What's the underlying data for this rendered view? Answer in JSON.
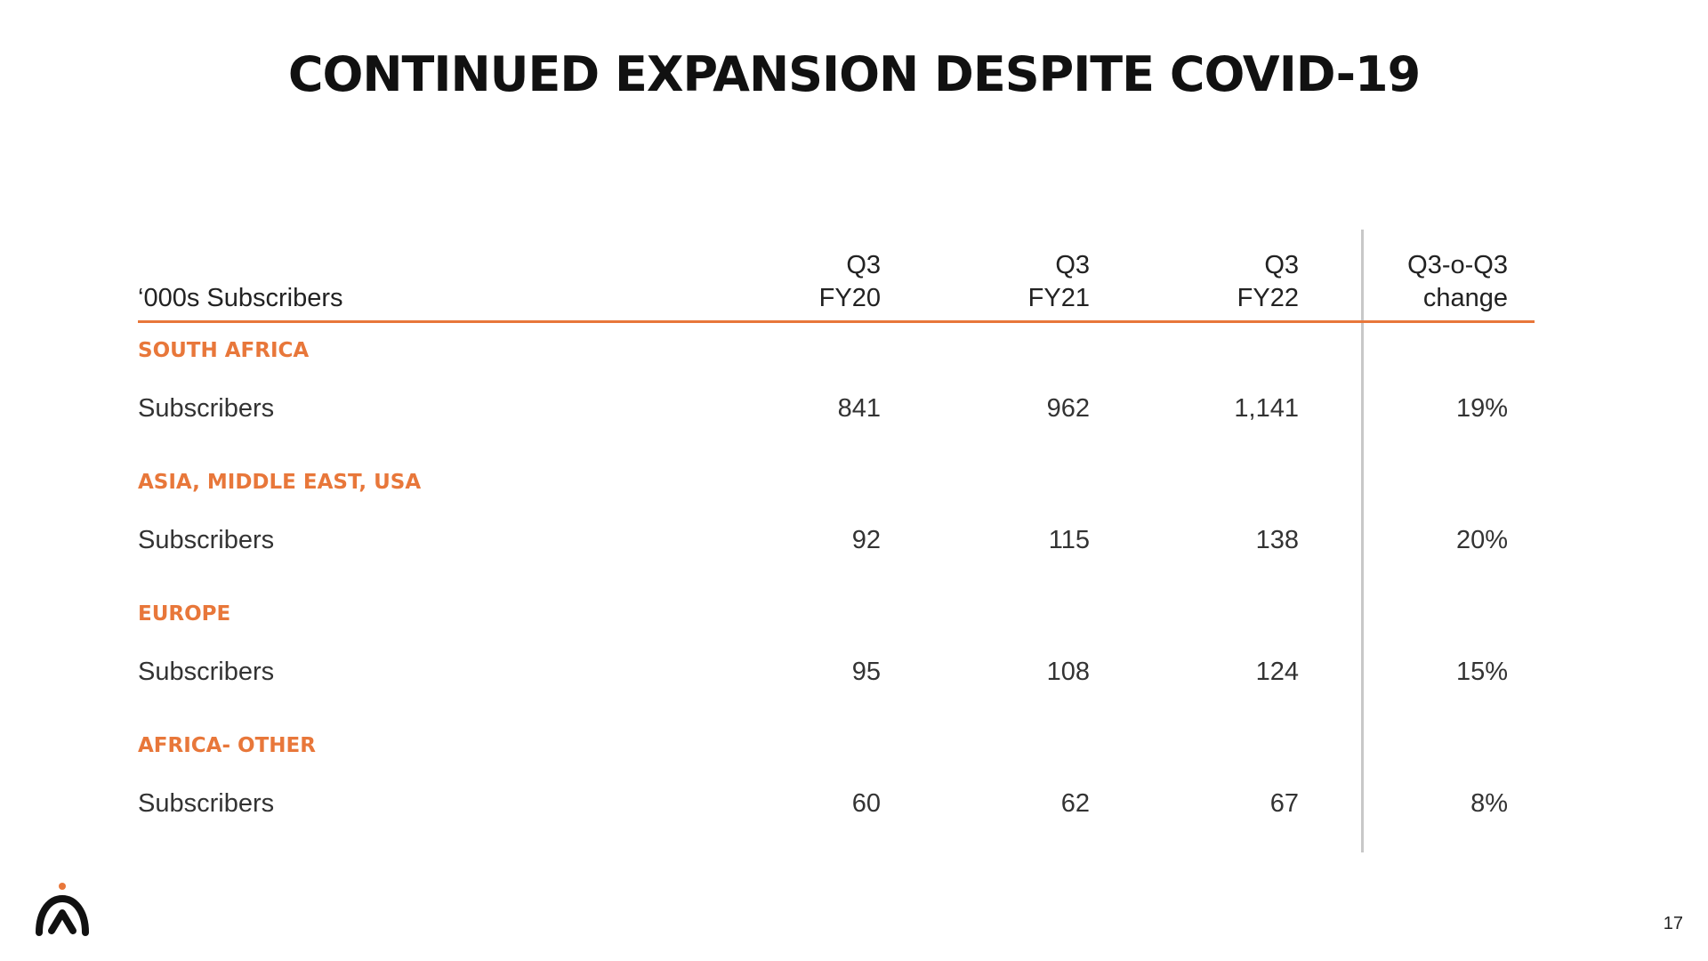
{
  "slide": {
    "title": "CONTINUED EXPANSION DESPITE COVID-19",
    "page_number": "17",
    "logo_icon": "chevron-peak-logo-icon",
    "accent_color": "#e8773a"
  },
  "table": {
    "header": {
      "label": "‘000s Subscribers",
      "columns": [
        {
          "line1": "Q3",
          "line2": "FY20"
        },
        {
          "line1": "Q3",
          "line2": "FY21"
        },
        {
          "line1": "Q3",
          "line2": "FY22"
        },
        {
          "line1": "Q3-o-Q3",
          "line2": "change"
        }
      ]
    },
    "sections": [
      {
        "region": "SOUTH AFRICA",
        "row_label": "Subscribers",
        "values": [
          "841",
          "962",
          "1,141",
          "19%"
        ]
      },
      {
        "region": "ASIA, MIDDLE EAST, USA",
        "row_label": "Subscribers",
        "values": [
          "92",
          "115",
          "138",
          "20%"
        ]
      },
      {
        "region": "EUROPE",
        "row_label": "Subscribers",
        "values": [
          "95",
          "108",
          "124",
          "15%"
        ]
      },
      {
        "region": "AFRICA- OTHER",
        "row_label": "Subscribers",
        "values": [
          "60",
          "62",
          "67",
          "8%"
        ]
      }
    ]
  }
}
